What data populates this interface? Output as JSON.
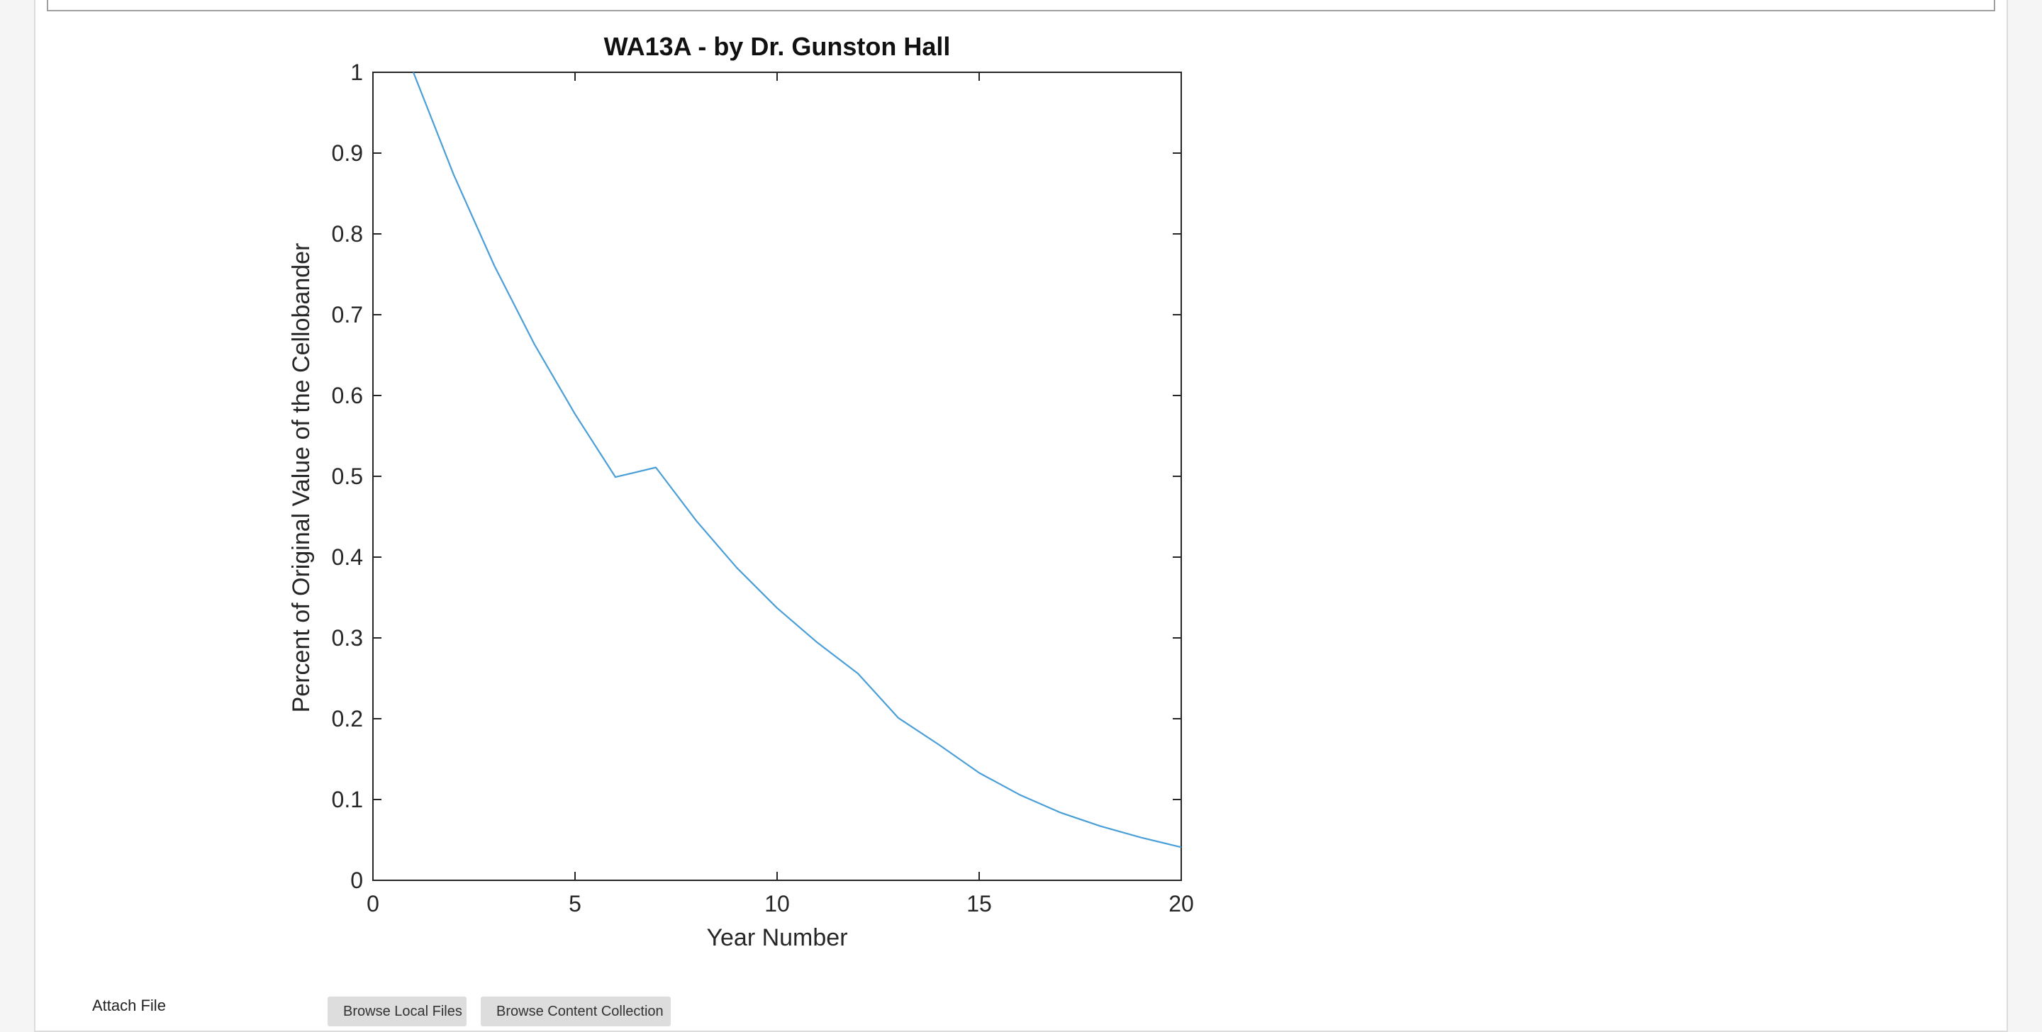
{
  "form": {
    "attach_file_label": "Attach File",
    "browse_local_label": "Browse Local Files",
    "browse_content_label": "Browse Content Collection"
  },
  "colors": {
    "line": "#4a9fd8",
    "axis": "#262626",
    "page_bg": "#f5f5f5",
    "panel_bg": "#ffffff",
    "button_bg": "#dddddd"
  },
  "chart_data": {
    "type": "line",
    "title": "WA13A - by Dr. Gunston Hall",
    "xlabel": "Year Number",
    "ylabel": "Percent of Original Value of the Cellobander",
    "xlim": [
      0,
      20
    ],
    "ylim": [
      0,
      1
    ],
    "xticks": [
      0,
      5,
      10,
      15,
      20
    ],
    "yticks": [
      0,
      0.1,
      0.2,
      0.3,
      0.4,
      0.5,
      0.6,
      0.7,
      0.8,
      0.9,
      1
    ],
    "grid": false,
    "box": true,
    "series": [
      {
        "x": [
          1,
          2,
          3,
          4,
          5,
          6,
          7,
          8,
          9,
          10,
          11,
          12,
          13,
          14,
          15,
          16,
          17,
          18,
          19,
          20
        ],
        "y": [
          1.0,
          0.873,
          0.761,
          0.663,
          0.577,
          0.499,
          0.511,
          0.445,
          0.387,
          0.337,
          0.294,
          0.256,
          0.201,
          0.168,
          0.133,
          0.106,
          0.084,
          0.067,
          0.053,
          0.041
        ]
      }
    ]
  }
}
